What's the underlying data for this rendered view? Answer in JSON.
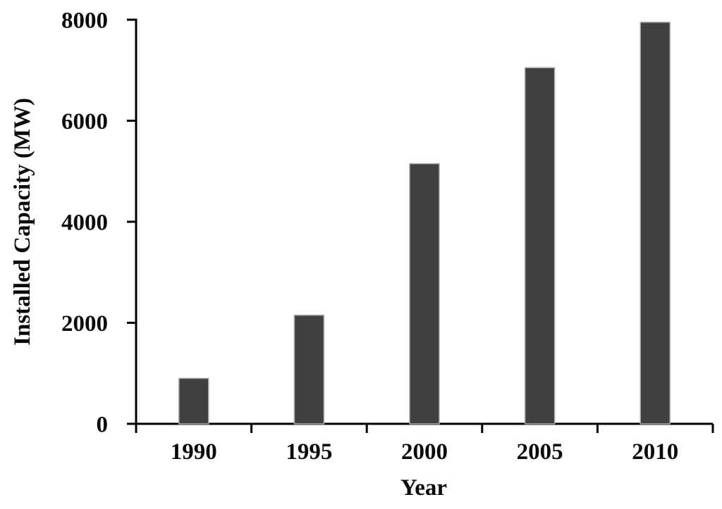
{
  "chart_data": {
    "type": "bar",
    "title": "",
    "categories": [
      "1990",
      "1995",
      "2000",
      "2005",
      "2010"
    ],
    "values": [
      900,
      2150,
      5150,
      7050,
      7950
    ],
    "xlabel": "Year",
    "ylabel": "Installed Capacity (MW)",
    "ylim": [
      0,
      8000
    ],
    "yticks": [
      0,
      2000,
      4000,
      6000,
      8000
    ],
    "grid": false,
    "legend_position": "none",
    "bar_color": "#404040",
    "bar_border_color": "#ababab",
    "axis_color": "#000000",
    "label_color": "#0a0a0a",
    "background": "#ffffff"
  }
}
